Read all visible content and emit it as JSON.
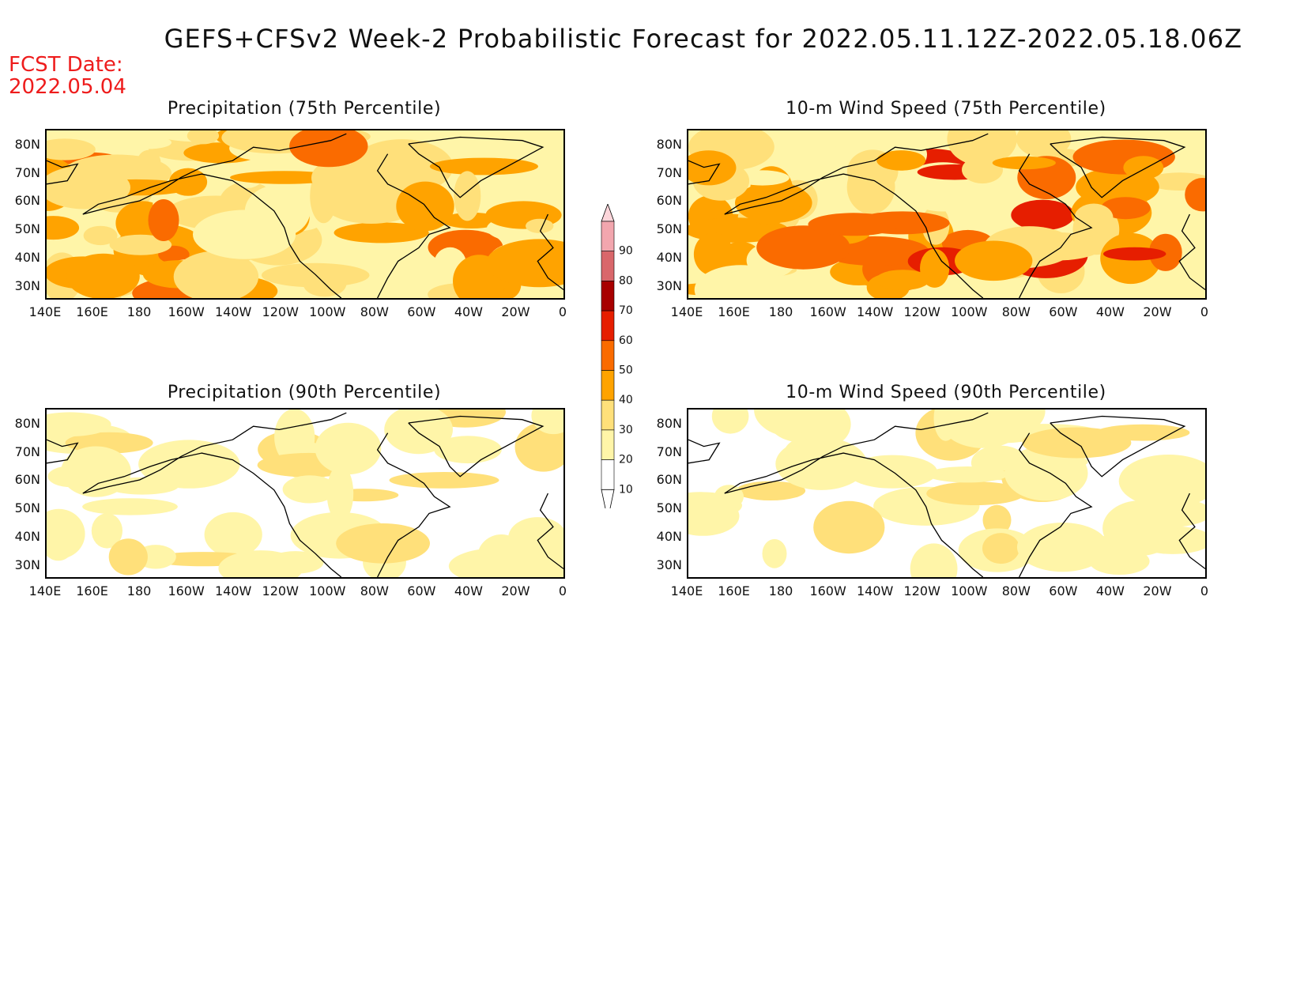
{
  "header": {
    "title": "GEFS+CFSv2 Week-2 Probabilistic Forecast for 2022.05.11.12Z-2022.05.18.06Z",
    "fcst_date_label": "FCST Date:",
    "fcst_date": "2022.05.04"
  },
  "panels": [
    {
      "id": "precip-75",
      "title": "Precipitation (75th Percentile)",
      "intensity": 2.2
    },
    {
      "id": "wind-75",
      "title": "10-m Wind Speed (75th Percentile)",
      "intensity": 2.6
    },
    {
      "id": "precip-90",
      "title": "Precipitation (90th Percentile)",
      "intensity": 0.7
    },
    {
      "id": "wind-90",
      "title": "10-m Wind Speed (90th Percentile)",
      "intensity": 0.8
    }
  ],
  "axes": {
    "lat_ticks": [
      "80N",
      "70N",
      "60N",
      "50N",
      "40N",
      "30N"
    ],
    "lon_ticks": [
      "140E",
      "160E",
      "180",
      "160W",
      "140W",
      "120W",
      "100W",
      "80W",
      "60W",
      "40W",
      "20W",
      "0"
    ]
  },
  "colorbar": {
    "levels": [
      "10",
      "20",
      "30",
      "40",
      "50",
      "60",
      "70",
      "80",
      "90"
    ],
    "colors": [
      "#ffffff",
      "#fff5a8",
      "#ffe07a",
      "#ffa300",
      "#fa6b00",
      "#e61e00",
      "#a80000",
      "#d9676b",
      "#f2a6ae",
      "#fcd5da"
    ]
  }
}
